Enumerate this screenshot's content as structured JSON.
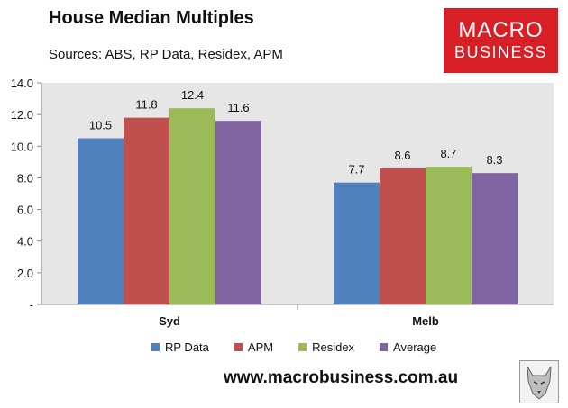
{
  "header": {
    "title": "House Median Multiples",
    "subtitle": "Sources: ABS, RP Data, Residex, APM"
  },
  "logo": {
    "line1": "MACRO",
    "line2": "BUSINESS",
    "color": "#d81f26"
  },
  "footer": {
    "url": "www.macrobusiness.com.au"
  },
  "chart_data": {
    "type": "bar",
    "categories": [
      "Syd",
      "Melb"
    ],
    "series": [
      {
        "name": "RP Data",
        "values": [
          10.5,
          7.7
        ],
        "color": "#4f81bd"
      },
      {
        "name": "APM",
        "values": [
          11.8,
          8.6
        ],
        "color": "#c0504d"
      },
      {
        "name": "Residex",
        "values": [
          12.4,
          8.7
        ],
        "color": "#9bbb59"
      },
      {
        "name": "Average",
        "values": [
          11.6,
          8.3
        ],
        "color": "#8064a2"
      }
    ],
    "yticks": [
      "-",
      "2.0",
      "4.0",
      "6.0",
      "8.0",
      "10.0",
      "12.0",
      "14.0"
    ],
    "ylim": [
      0,
      14
    ],
    "grid": false,
    "legend": "bottom",
    "plot_background": "#e6e6e6",
    "title": "House Median Multiples",
    "xlabel": "",
    "ylabel": ""
  }
}
